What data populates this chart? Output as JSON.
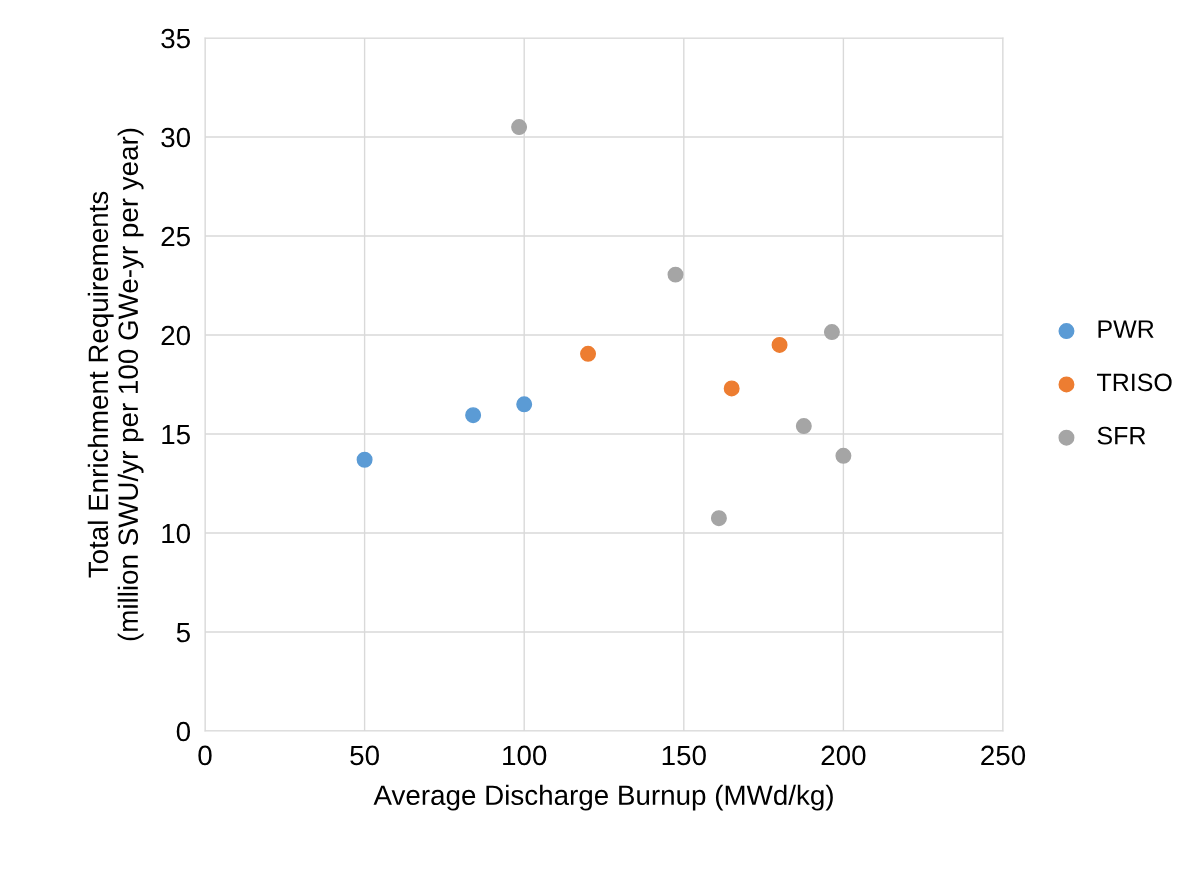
{
  "chart_data": {
    "type": "scatter",
    "xlabel": "Average Discharge Burnup (MWd/kg)",
    "ylabel": "Total Enrichment Requirements\n(million SWU/yr per 100 GWe-yr per year)",
    "xlim": [
      0,
      250
    ],
    "xticks": [
      0,
      50,
      100,
      150,
      200,
      250
    ],
    "ylim": [
      0,
      35
    ],
    "yticks": [
      0,
      5,
      10,
      15,
      20,
      25,
      30,
      35
    ],
    "grid": true,
    "legend": "right",
    "marker": "circle",
    "series": [
      {
        "name": "PWR",
        "color": "#5b9bd5",
        "x": [
          50,
          84,
          100
        ],
        "values": [
          13.7,
          15.95,
          16.5
        ]
      },
      {
        "name": "TRISO",
        "color": "#ed7d31",
        "x": [
          120,
          165,
          180
        ],
        "values": [
          19.05,
          17.3,
          19.5
        ]
      },
      {
        "name": "SFR",
        "color": "#a5a5a5",
        "x": [
          98.4,
          147.4,
          196.4,
          187.6,
          200,
          161
        ],
        "values": [
          30.5,
          23.05,
          20.15,
          15.4,
          13.9,
          10.75
        ]
      }
    ]
  }
}
